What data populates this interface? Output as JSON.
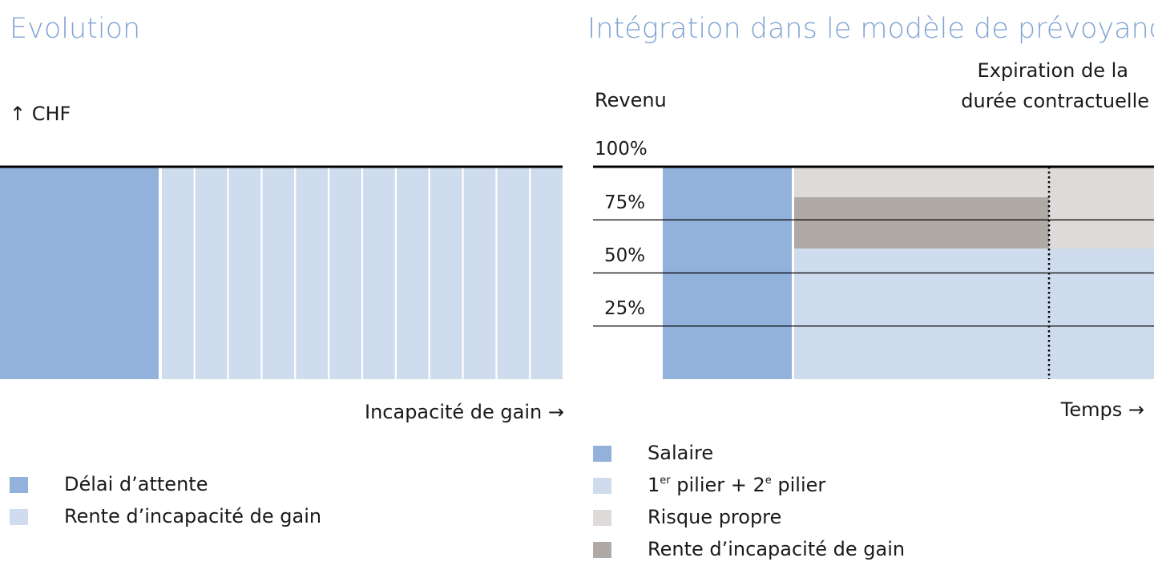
{
  "left": {
    "title": "Evolution",
    "y_axis_label": "↑  CHF",
    "x_axis_label": "Incapacité de gain →",
    "legend": [
      {
        "label": "Délai d’attente",
        "color": "#92b1db"
      },
      {
        "label": "Rente d’incapacité de gain",
        "color": "#cfdced"
      }
    ]
  },
  "right": {
    "title": "Intégration dans le modèle de prévoyance",
    "y_axis_label": "Revenu",
    "annotation_line1": "Expiration de la",
    "annotation_line2": "durée contractuelle",
    "x_axis_label": "Temps →",
    "ticks": [
      "100%",
      "75%",
      "50%",
      "25%"
    ],
    "legend": [
      {
        "label": "Salaire",
        "color": "#92b1db"
      },
      {
        "sup_parts": [
          "1",
          "er",
          " pilier + 2",
          "e",
          " pilier"
        ],
        "color": "#cfdced"
      },
      {
        "label": "Risque propre",
        "color": "#dedad9"
      },
      {
        "label": "Rente d’incapacité de gain",
        "color": "#b0aaa7"
      }
    ]
  },
  "chart_data": [
    {
      "type": "bar",
      "title": "Evolution",
      "ylabel": "CHF",
      "xlabel": "Incapacité de gain",
      "segments": [
        {
          "name": "Délai d’attente",
          "periods": 1,
          "relative_width": 4.75,
          "color": "#92b1db"
        },
        {
          "name": "Rente d’incapacité de gain",
          "periods": 12,
          "color": "#cfdced"
        }
      ]
    },
    {
      "type": "area",
      "title": "Intégration dans le modèle de prévoyance",
      "ylabel": "Revenu",
      "xlabel": "Temps",
      "ylim": [
        0,
        100
      ],
      "yticks": [
        100,
        75,
        50,
        25
      ],
      "phases": [
        "waiting",
        "rente",
        "after_expiration"
      ],
      "series": [
        {
          "name": "Salaire",
          "values": [
            100,
            0,
            0
          ],
          "color": "#92b1db"
        },
        {
          "name": "1er pilier + 2e pilier",
          "values": [
            0,
            61.5,
            61.5
          ],
          "color": "#cfdced"
        },
        {
          "name": "Rente d’incapacité de gain",
          "values": [
            0,
            24.2,
            0
          ],
          "color": "#b0aaa7"
        },
        {
          "name": "Risque propre",
          "values": [
            0,
            14.3,
            38.5
          ],
          "color": "#dedad9"
        }
      ]
    }
  ]
}
